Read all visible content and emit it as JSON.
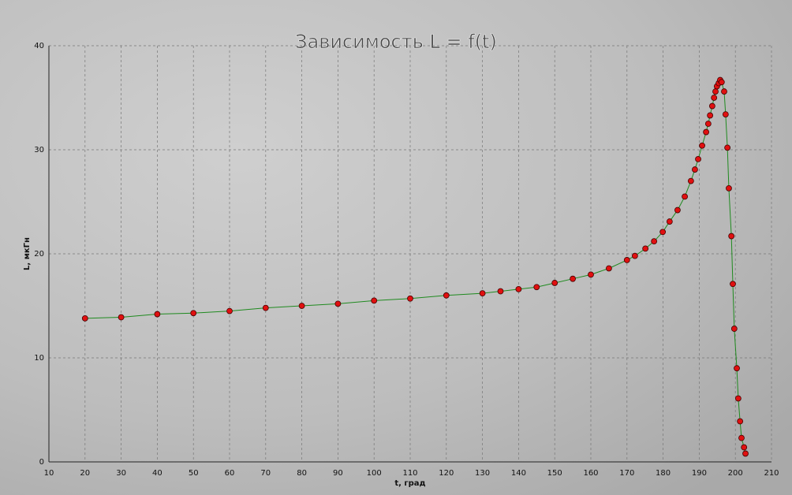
{
  "chart_data": {
    "type": "line",
    "title": "Зависимость L = f(t)",
    "x_label": "t, град",
    "y_label": "L, мкГн",
    "series": [
      {
        "color": "#1f8a1f",
        "marker_color": "#e01010",
        "x": [
          20,
          30,
          40,
          50,
          60,
          70,
          80,
          90,
          100,
          110,
          120,
          130,
          135,
          140,
          145,
          150,
          155,
          160,
          165,
          170,
          172.2,
          175.1,
          177.5,
          179.9,
          181.8,
          184.0,
          186.0,
          187.7,
          188.8,
          189.7,
          190.8,
          191.9,
          192.5,
          193.0,
          193.6,
          194.1,
          194.5,
          194.9,
          195.4,
          195.8,
          196.2,
          196.9,
          197.3,
          197.8,
          198.2,
          198.9,
          199.3,
          199.7,
          200.4,
          200.8,
          201.3,
          201.7,
          202.4,
          202.8
        ],
        "values": [
          13.8,
          13.9,
          14.2,
          14.3,
          14.5,
          14.8,
          15.0,
          15.2,
          15.5,
          15.7,
          16.0,
          16.2,
          16.4,
          16.6,
          16.8,
          17.2,
          17.6,
          18.0,
          18.6,
          19.4,
          19.8,
          20.5,
          21.2,
          22.1,
          23.1,
          24.2,
          25.5,
          27.0,
          28.1,
          29.1,
          30.4,
          31.7,
          32.5,
          33.3,
          34.2,
          35.0,
          35.6,
          36.1,
          36.4,
          36.7,
          36.5,
          35.6,
          33.4,
          30.2,
          26.3,
          21.7,
          17.1,
          12.8,
          9.0,
          6.1,
          3.9,
          2.3,
          1.4,
          0.8
        ]
      }
    ],
    "xlim": [
      10,
      210
    ],
    "xticks": [
      10,
      20,
      30,
      40,
      50,
      60,
      70,
      80,
      90,
      100,
      110,
      120,
      130,
      140,
      150,
      160,
      170,
      180,
      190,
      200,
      210
    ],
    "ylim": [
      0,
      40
    ],
    "yticks": [
      0,
      10,
      20,
      30,
      40
    ],
    "grid": true
  }
}
